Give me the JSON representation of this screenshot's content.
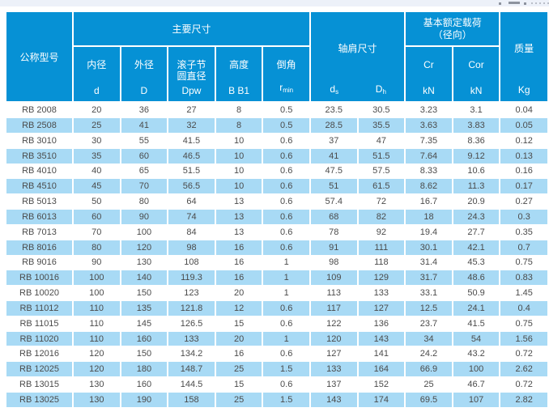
{
  "page": {
    "background": "#ffffff",
    "top_strip_color": "#edf1f9"
  },
  "colors": {
    "header_blue": "#0691d5",
    "row_alt_blue": "#a8daf5",
    "row_white": "#ffffff",
    "body_text": "#4b4b4b",
    "header_text": "#ffffff"
  },
  "table": {
    "header": {
      "model": "公称型号",
      "main_dims": "主要尺寸",
      "sub_cols": [
        {
          "label": "内径",
          "symbol": "d"
        },
        {
          "label": "外径",
          "symbol": "D"
        },
        {
          "label": "滚子节\n圆直径",
          "symbol": "Dpw"
        },
        {
          "label": "高度",
          "symbol": "B B1"
        },
        {
          "label": "倒角",
          "symbol_main": "r",
          "symbol_sub": "min"
        }
      ],
      "shoulder": {
        "title": "轴肩尺寸",
        "symbols": [
          {
            "main": "d",
            "sub": "s"
          },
          {
            "main": "D",
            "sub": "h"
          }
        ]
      },
      "load": {
        "title_line1": "基本额定载荷",
        "title_line2": "（径向）",
        "cols": [
          {
            "label": "Cr",
            "unit": "kN"
          },
          {
            "label": "Cor",
            "unit": "kN"
          }
        ]
      },
      "mass": {
        "title": "质量",
        "unit": "Kg"
      }
    },
    "rows": [
      [
        "RB 2008",
        "20",
        "36",
        "27",
        "8",
        "0.5",
        "23.5",
        "30.5",
        "3.23",
        "3.1",
        "0.04"
      ],
      [
        "RB 2508",
        "25",
        "41",
        "32",
        "8",
        "0.5",
        "28.5",
        "35.5",
        "3.63",
        "3.83",
        "0.05"
      ],
      [
        "RB 3010",
        "30",
        "55",
        "41.5",
        "10",
        "0.6",
        "37",
        "47",
        "7.35",
        "8.36",
        "0.12"
      ],
      [
        "RB 3510",
        "35",
        "60",
        "46.5",
        "10",
        "0.6",
        "41",
        "51.5",
        "7.64",
        "9.12",
        "0.13"
      ],
      [
        "RB 4010",
        "40",
        "65",
        "51.5",
        "10",
        "0.6",
        "47.5",
        "57.5",
        "8.33",
        "10.6",
        "0.16"
      ],
      [
        "RB 4510",
        "45",
        "70",
        "56.5",
        "10",
        "0.6",
        "51",
        "61.5",
        "8.62",
        "11.3",
        "0.17"
      ],
      [
        "RB 5013",
        "50",
        "80",
        "64",
        "13",
        "0.6",
        "57.4",
        "72",
        "16.7",
        "20.9",
        "0.27"
      ],
      [
        "RB 6013",
        "60",
        "90",
        "74",
        "13",
        "0.6",
        "68",
        "82",
        "18",
        "24.3",
        "0.3"
      ],
      [
        "RB 7013",
        "70",
        "100",
        "84",
        "13",
        "0.6",
        "78",
        "92",
        "19.4",
        "27.7",
        "0.35"
      ],
      [
        "RB 8016",
        "80",
        "120",
        "98",
        "16",
        "0.6",
        "91",
        "111",
        "30.1",
        "42.1",
        "0.7"
      ],
      [
        "RB 9016",
        "90",
        "130",
        "108",
        "16",
        "1",
        "98",
        "118",
        "31.4",
        "45.3",
        "0.75"
      ],
      [
        "RB 10016",
        "100",
        "140",
        "119.3",
        "16",
        "1",
        "109",
        "129",
        "31.7",
        "48.6",
        "0.83"
      ],
      [
        "RB 10020",
        "100",
        "150",
        "123",
        "20",
        "1",
        "113",
        "133",
        "33.1",
        "50.9",
        "1.45"
      ],
      [
        "RB 11012",
        "110",
        "135",
        "121.8",
        "12",
        "0.6",
        "117",
        "127",
        "12.5",
        "24.1",
        "0.4"
      ],
      [
        "RB 11015",
        "110",
        "145",
        "126.5",
        "15",
        "0.6",
        "122",
        "136",
        "23.7",
        "41.5",
        "0.75"
      ],
      [
        "RB 11020",
        "110",
        "160",
        "133",
        "20",
        "1",
        "120",
        "143",
        "34",
        "54",
        "1.56"
      ],
      [
        "RB 12016",
        "120",
        "150",
        "134.2",
        "16",
        "0.6",
        "127",
        "141",
        "24.2",
        "43.2",
        "0.72"
      ],
      [
        "RB 12025",
        "120",
        "180",
        "148.7",
        "25",
        "1.5",
        "133",
        "164",
        "66.9",
        "100",
        "2.62"
      ],
      [
        "RB 13015",
        "130",
        "160",
        "144.5",
        "15",
        "0.6",
        "137",
        "152",
        "25",
        "46.7",
        "0.72"
      ],
      [
        "RB 13025",
        "130",
        "190",
        "158",
        "25",
        "1.5",
        "143",
        "174",
        "69.5",
        "107",
        "2.82"
      ]
    ]
  }
}
